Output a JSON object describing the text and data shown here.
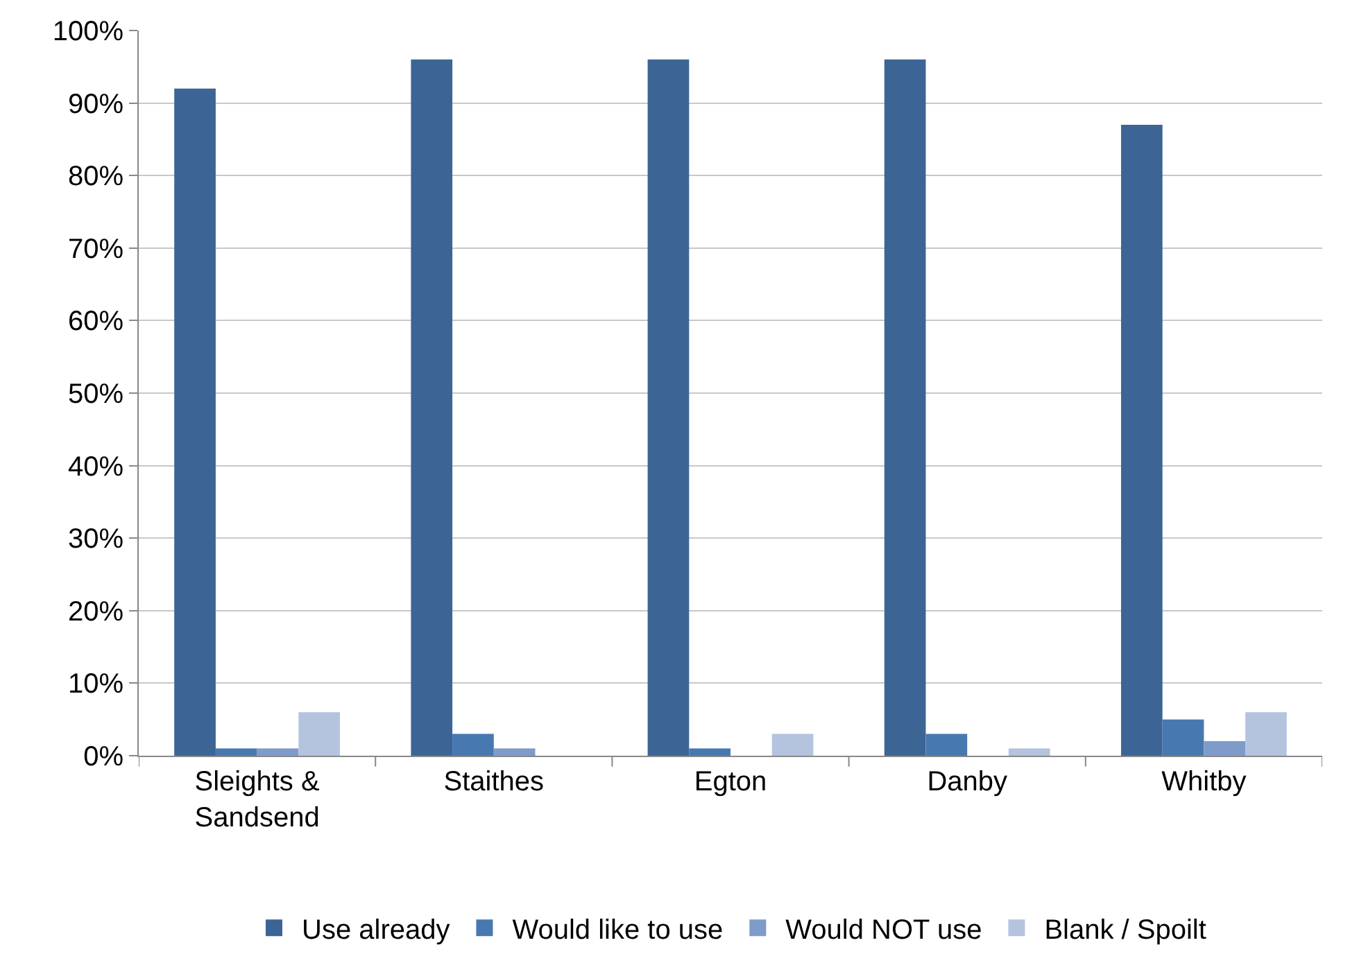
{
  "chart_data": {
    "type": "bar",
    "categories": [
      "Sleights &\nSandsend",
      "Staithes",
      "Egton",
      "Danby",
      "Whitby"
    ],
    "series": [
      {
        "name": "Use already",
        "color": "#3c6596",
        "values": [
          92,
          96,
          96,
          96,
          87
        ]
      },
      {
        "name": "Would like to use",
        "color": "#4878b0",
        "values": [
          1,
          3,
          1,
          3,
          5
        ]
      },
      {
        "name": "Would NOT use",
        "color": "#7e9bc9",
        "values": [
          1,
          1,
          0,
          0,
          2
        ]
      },
      {
        "name": "Blank / Spoilt",
        "color": "#b4c4df",
        "values": [
          6,
          0,
          3,
          1,
          6
        ]
      }
    ],
    "ylim": [
      0,
      100
    ],
    "yticks": [
      {
        "value": 0,
        "label": "0%"
      },
      {
        "value": 10,
        "label": "10%"
      },
      {
        "value": 20,
        "label": "20%"
      },
      {
        "value": 30,
        "label": "30%"
      },
      {
        "value": 40,
        "label": "40%"
      },
      {
        "value": 50,
        "label": "50%"
      },
      {
        "value": 60,
        "label": "60%"
      },
      {
        "value": 70,
        "label": "70%"
      },
      {
        "value": 80,
        "label": "80%"
      },
      {
        "value": 90,
        "label": "90%"
      },
      {
        "value": 100,
        "label": "100%"
      }
    ],
    "grid": "y",
    "legend": "bottom"
  }
}
